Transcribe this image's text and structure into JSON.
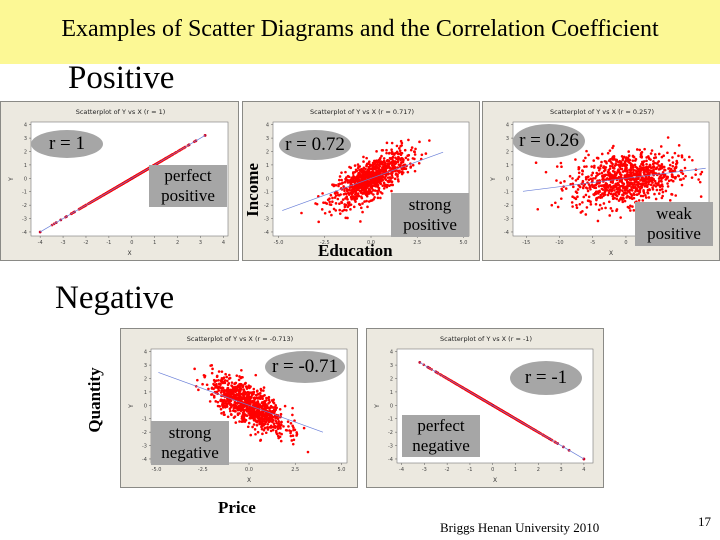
{
  "slide": {
    "title": "Examples of Scatter Diagrams and the Correlation Coefficient",
    "banner_color": "#fcf895",
    "sections": {
      "positive": "Positive",
      "negative": "Negative"
    },
    "footer": {
      "credit": "Briggs  Henan University 2010",
      "page_number": "17"
    },
    "axis_labels": {
      "income": "Income",
      "education": "Education",
      "quantity": "Quantity",
      "price": "Price"
    }
  },
  "colors": {
    "point": "#ff0000",
    "fit_line": "#6a7fd8",
    "frame_bg": "#ece9e0",
    "label_box": "#a6a6a6"
  },
  "charts": [
    {
      "id": "c1",
      "title": "Scatterplot of Y vs X (r = 1)",
      "r_label": "r = 1",
      "desc": [
        "perfect",
        "positive"
      ],
      "xlabel": "X",
      "ylabel": "Y"
    },
    {
      "id": "c2",
      "title": "Scatterplot of Y vs X (r = 0.717)",
      "r_label": "r = 0.72",
      "desc": [
        "strong",
        "positive"
      ],
      "xlabel": "X",
      "ylabel": "Y"
    },
    {
      "id": "c3",
      "title": "Scatterplot of Y vs X (r = 0.257)",
      "r_label": "r = 0.26",
      "desc": [
        "weak",
        "positive"
      ],
      "xlabel": "X",
      "ylabel": "Y"
    },
    {
      "id": "c4",
      "title": "Scatterplot of Y vs X (r = -0.713)",
      "r_label": "r = -0.71",
      "desc": [
        "strong",
        "negative"
      ],
      "xlabel": "X",
      "ylabel": "Y"
    },
    {
      "id": "c5",
      "title": "Scatterplot of Y vs X (r = -1)",
      "r_label": "r = -1",
      "desc": [
        "perfect",
        "negative"
      ],
      "xlabel": "X",
      "ylabel": "Y"
    }
  ],
  "chart_data": [
    {
      "type": "scatter",
      "title": "Scatterplot of Y vs X (r = 1)",
      "xlabel": "X",
      "ylabel": "Y",
      "xlim": [
        -4.4,
        4.2
      ],
      "ylim": [
        -4.3,
        4.2
      ],
      "xticks": [
        -4,
        -3,
        -2,
        -1,
        0,
        1,
        2,
        3,
        4
      ],
      "yticks": [
        -4,
        -3,
        -2,
        -1,
        0,
        1,
        2,
        3,
        4
      ],
      "r": 1,
      "fit_line": {
        "slope": 1.0,
        "intercept": 0.0,
        "x_range": [
          -4.0,
          3.2
        ]
      },
      "points_summary": "~1000 points exactly on line y = x, from (-4,-4) to (3.2,3.2); dense between -2.5 and 2.5",
      "sample_points": [
        [
          -4.0,
          -4.0
        ],
        [
          -3.3,
          -3.3
        ],
        [
          -3.1,
          -3.1
        ],
        [
          -2.85,
          -2.85
        ],
        [
          -2.5,
          -2.5
        ],
        [
          0,
          0
        ],
        [
          2.5,
          2.5
        ],
        [
          2.8,
          2.8
        ],
        [
          3.2,
          3.2
        ]
      ],
      "annotations": [
        "r = 1",
        "perfect positive"
      ]
    },
    {
      "type": "scatter",
      "title": "Scatterplot of Y vs X (r = 0.717)",
      "xlabel": "Education",
      "ylabel": "Income",
      "xlim": [
        -5.3,
        5.3
      ],
      "ylim": [
        -4.3,
        4.2
      ],
      "xticks": [
        -5.0,
        -2.5,
        0.0,
        2.5,
        5.0
      ],
      "yticks": [
        -4,
        -3,
        -2,
        -1,
        0,
        1,
        2,
        3,
        4
      ],
      "r": 0.717,
      "fit_line": {
        "slope": 0.5,
        "intercept": 0.0,
        "x_range": [
          -4.8,
          3.9
        ]
      },
      "points_summary": "~1000 points, bivariate normal, r=0.717, centered near (0,0)",
      "annotations": [
        "r = 0.72",
        "strong positive"
      ]
    },
    {
      "type": "scatter",
      "title": "Scatterplot of Y vs X (r = 0.257)",
      "xlabel": "X",
      "ylabel": "Y",
      "xlim": [
        -17,
        12.5
      ],
      "ylim": [
        -4.3,
        4.2
      ],
      "xticks": [
        -15,
        -10,
        -5,
        0,
        5,
        10
      ],
      "yticks": [
        -4,
        -3,
        -2,
        -1,
        0,
        1,
        2,
        3,
        4
      ],
      "r": 0.257,
      "fit_line": {
        "slope": 0.0625,
        "intercept": 0.0,
        "x_range": [
          -15.5,
          12
        ]
      },
      "points_summary": "~1000 points, wide x spread (sd≈4), r=0.257",
      "annotations": [
        "r = 0.26",
        "weak positive"
      ]
    },
    {
      "type": "scatter",
      "title": "Scatterplot of Y vs X (r = -0.713)",
      "xlabel": "Price",
      "ylabel": "Quantity",
      "xlim": [
        -5.3,
        5.3
      ],
      "ylim": [
        -4.3,
        4.2
      ],
      "xticks": [
        -5.0,
        -2.5,
        0.0,
        2.5,
        5.0
      ],
      "yticks": [
        -4,
        -3,
        -2,
        -1,
        0,
        1,
        2,
        3,
        4
      ],
      "r": -0.713,
      "fit_line": {
        "slope": -0.5,
        "intercept": 0.0,
        "x_range": [
          -4.9,
          4.0
        ]
      },
      "points_summary": "~1000 points, bivariate normal, r=-0.713",
      "annotations": [
        "r = -0.71",
        "strong negative"
      ]
    },
    {
      "type": "scatter",
      "title": "Scatterplot of Y vs X (r = -1)",
      "xlabel": "X",
      "ylabel": "Y",
      "xlim": [
        -4.2,
        4.4
      ],
      "ylim": [
        -4.3,
        4.2
      ],
      "xticks": [
        -4,
        -3,
        -2,
        -1,
        0,
        1,
        2,
        3,
        4
      ],
      "yticks": [
        -4,
        -3,
        -2,
        -1,
        0,
        1,
        2,
        3,
        4
      ],
      "r": -1,
      "fit_line": {
        "slope": -1.0,
        "intercept": 0.0,
        "x_range": [
          -3.2,
          4.0
        ]
      },
      "points_summary": "~1000 points exactly on line y = -x, from (-3.2,3.2) to (4,-4)",
      "sample_points": [
        [
          -3.2,
          3.2
        ],
        [
          -2.85,
          2.85
        ],
        [
          -2.5,
          2.5
        ],
        [
          0,
          0
        ],
        [
          2.5,
          -2.5
        ],
        [
          2.85,
          -2.85
        ],
        [
          3.1,
          -3.1
        ],
        [
          3.35,
          -3.35
        ],
        [
          4.0,
          -4.0
        ]
      ],
      "annotations": [
        "r = -1",
        "perfect negative"
      ]
    }
  ]
}
